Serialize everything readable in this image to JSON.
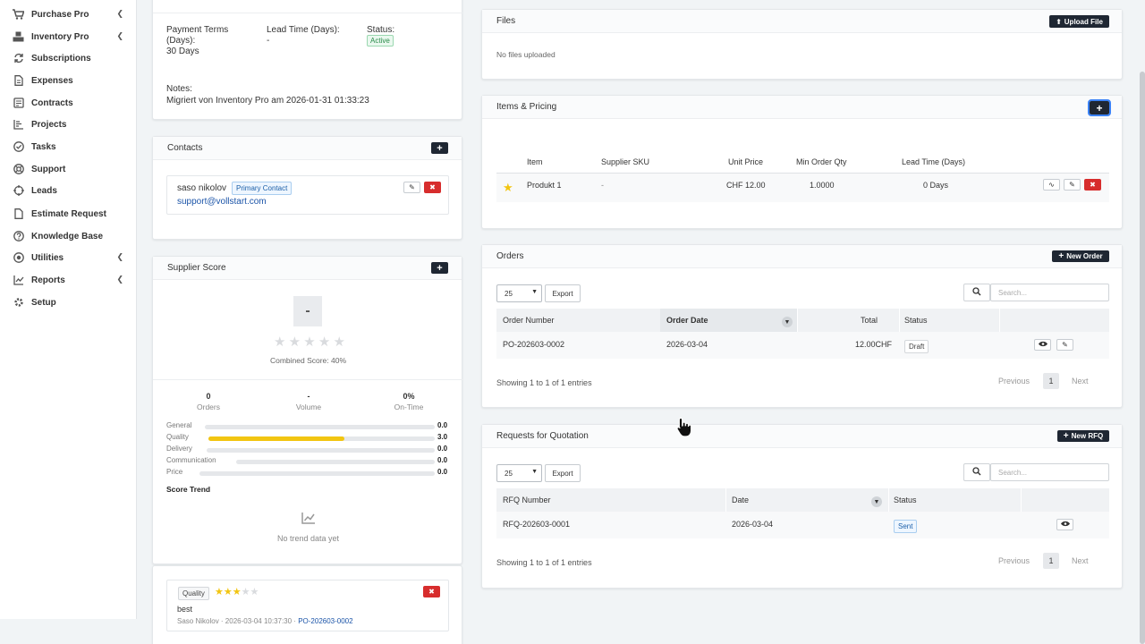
{
  "sidebar": {
    "items": [
      {
        "label": "Purchase Pro",
        "icon": "cart-icon",
        "chevron": true
      },
      {
        "label": "Inventory Pro",
        "icon": "boxes-icon",
        "chevron": true
      },
      {
        "label": "Subscriptions",
        "icon": "refresh-icon",
        "chevron": false
      },
      {
        "label": "Expenses",
        "icon": "file-icon",
        "chevron": false
      },
      {
        "label": "Contracts",
        "icon": "contract-icon",
        "chevron": false
      },
      {
        "label": "Projects",
        "icon": "chart-bars-icon",
        "chevron": false
      },
      {
        "label": "Tasks",
        "icon": "check-circle-icon",
        "chevron": false
      },
      {
        "label": "Support",
        "icon": "lifebuoy-icon",
        "chevron": false
      },
      {
        "label": "Leads",
        "icon": "target-icon",
        "chevron": false
      },
      {
        "label": "Estimate Request",
        "icon": "document-icon",
        "chevron": false
      },
      {
        "label": "Knowledge Base",
        "icon": "question-icon",
        "chevron": false
      },
      {
        "label": "Utilities",
        "icon": "dot-circle-icon",
        "chevron": true
      },
      {
        "label": "Reports",
        "icon": "line-chart-icon",
        "chevron": true
      },
      {
        "label": "Setup",
        "icon": "gear-icon",
        "chevron": false
      }
    ]
  },
  "supplier_info": {
    "payment_terms_label": "Payment Terms (Days):",
    "payment_terms_value": "30 Days",
    "lead_time_label": "Lead Time (Days):",
    "lead_time_value": "-",
    "status_label": "Status:",
    "status_value": "Active",
    "notes_label": "Notes:",
    "notes_value": "Migriert von Inventory Pro am 2026-01-31 01:33:23"
  },
  "contacts": {
    "title": "Contacts",
    "add_label": "+",
    "name": "saso nikolov",
    "badge": "Primary Contact",
    "email": "support@vollstart.com"
  },
  "supplier_score": {
    "title": "Supplier Score",
    "add_label": "+",
    "score_box": "-",
    "stars_filled": 0,
    "combined_label": "Combined Score: 40%",
    "stats": [
      {
        "value": "0",
        "label": "Orders"
      },
      {
        "value": "-",
        "label": "Volume"
      },
      {
        "value": "0%",
        "label": "On-Time"
      }
    ],
    "bars": [
      {
        "label": "General",
        "value": "0.0",
        "fraction": 0
      },
      {
        "label": "Quality",
        "value": "3.0",
        "fraction": 0.6
      },
      {
        "label": "Delivery",
        "value": "0.0",
        "fraction": 0
      },
      {
        "label": "Communication",
        "value": "0.0",
        "fraction": 0
      },
      {
        "label": "Price",
        "value": "0.0",
        "fraction": 0
      }
    ],
    "trend_title": "Score Trend",
    "trend_empty": "No trend data yet"
  },
  "review": {
    "tag": "Quality",
    "stars": 3,
    "stars_total": 5,
    "text": "best",
    "meta": "Saso Nikolov · 2026-03-04 10:37:30 · ",
    "link": "PO-202603-0002"
  },
  "files": {
    "title": "Files",
    "upload_label": "Upload File",
    "empty": "No files uploaded"
  },
  "items_pricing": {
    "title": "Items & Pricing",
    "add_label": "+",
    "columns": [
      "Item",
      "Supplier SKU",
      "Unit Price",
      "Min Order Qty",
      "Lead Time (Days)"
    ],
    "rows": [
      {
        "item": "Produkt 1",
        "sku": "-",
        "price": "CHF 12.00",
        "moq": "1.0000",
        "lead": "0 Days"
      }
    ]
  },
  "orders": {
    "title": "Orders",
    "new_label": "New Order",
    "page_size": "25",
    "export_label": "Export",
    "search_placeholder": "Search...",
    "columns": [
      "Order Number",
      "Order Date",
      "Total",
      "Status"
    ],
    "rows": [
      {
        "number": "PO-202603-0002",
        "date": "2026-03-04",
        "total": "12.00CHF",
        "status": "Draft"
      }
    ],
    "info": "Showing 1 to 1 of 1 entries",
    "previous": "Previous",
    "page": "1",
    "next": "Next"
  },
  "rfq": {
    "title": "Requests for Quotation",
    "new_label": "New RFQ",
    "page_size": "25",
    "export_label": "Export",
    "search_placeholder": "Search...",
    "columns": [
      "RFQ Number",
      "Date",
      "Status"
    ],
    "rows": [
      {
        "number": "RFQ-202603-0001",
        "date": "2026-03-04",
        "status": "Sent"
      }
    ],
    "info": "Showing 1 to 1 of 1 entries",
    "previous": "Previous",
    "page": "1",
    "next": "Next"
  },
  "colors": {
    "accent_dark": "#1f2733",
    "danger": "#d72d2d",
    "star": "#f2c511",
    "link": "#1b54a8"
  }
}
